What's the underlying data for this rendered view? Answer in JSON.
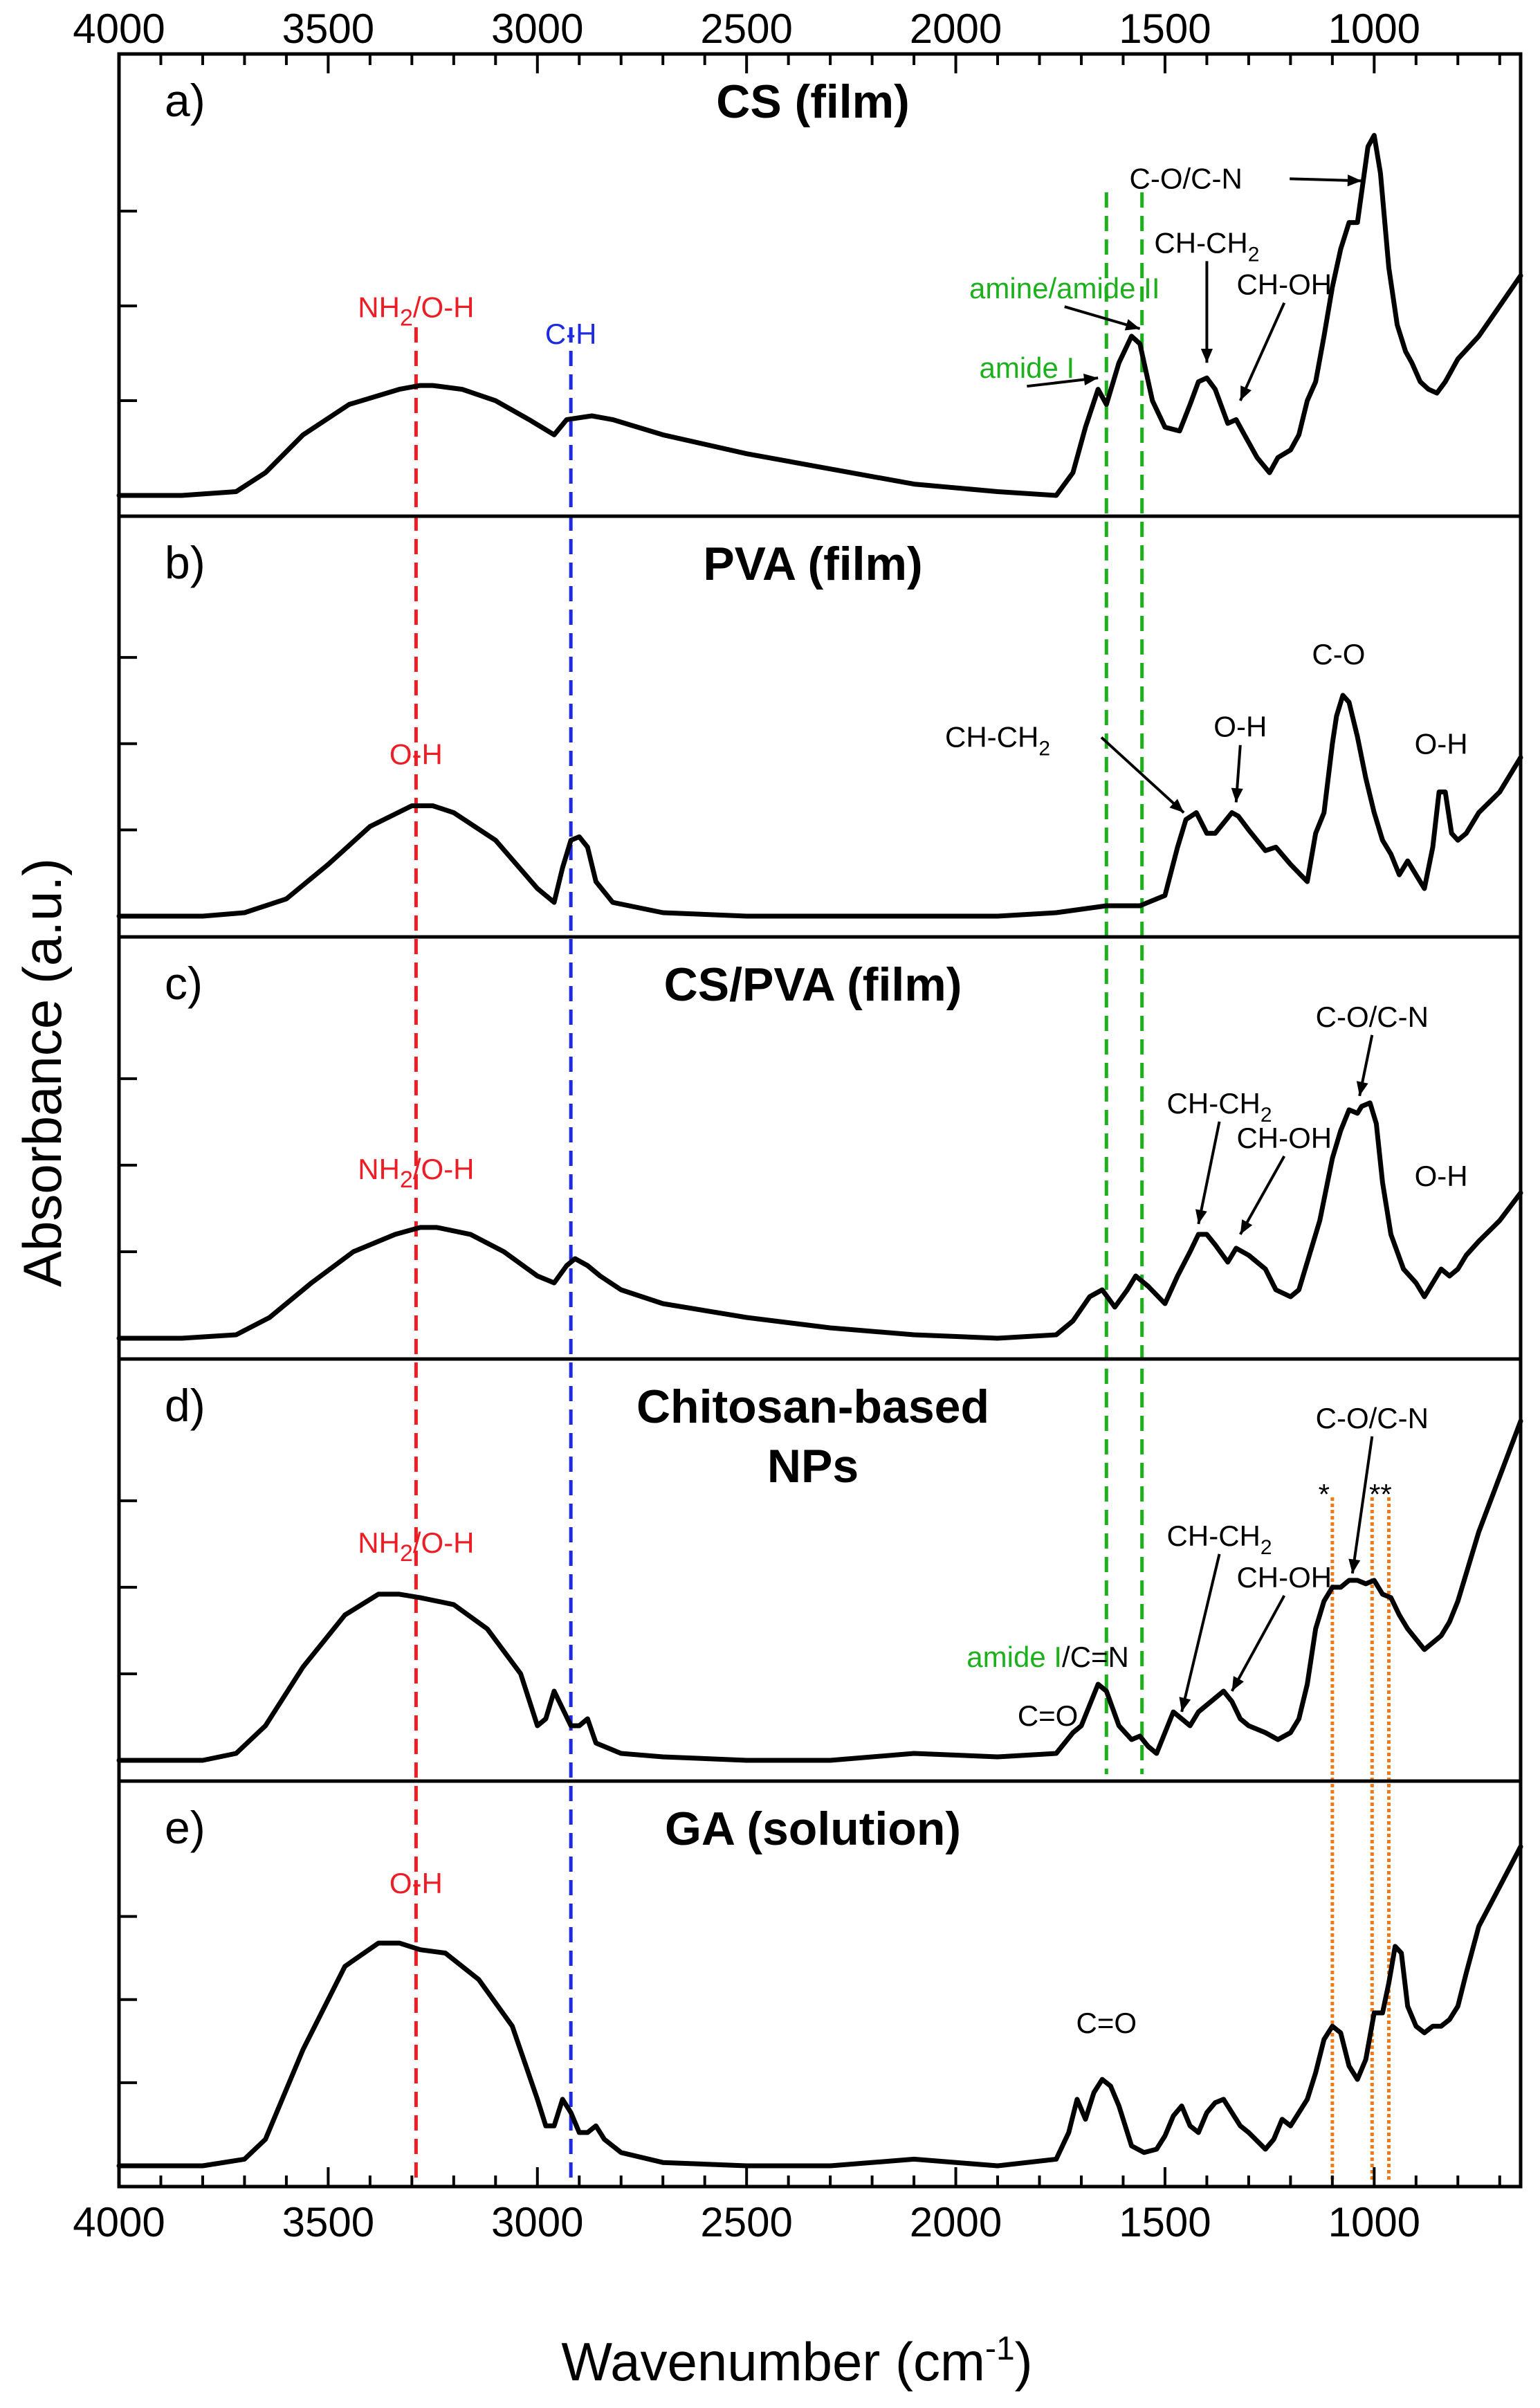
{
  "chart_data": {
    "type": "line",
    "xlabel": "Wavenumber (cm",
    "xlabel_sup": "-1",
    "xlabel_end": ")",
    "ylabel": "Absorbance (a.u.)",
    "xlim": [
      4000,
      650
    ],
    "x_reversed": true,
    "x_ticks": [
      4000,
      3500,
      3000,
      2500,
      2000,
      1500,
      1000
    ],
    "legend": "none",
    "grid": false,
    "colors": {
      "line": "#000000",
      "red": "#ee1c24",
      "blue": "#1f2be0",
      "green": "#1db01d",
      "orange": "#f07a1a"
    },
    "reference_lines": [
      {
        "x": 3290,
        "color": "red",
        "style": "dashed"
      },
      {
        "x": 2920,
        "color": "blue",
        "style": "dashed"
      },
      {
        "x": 1640,
        "color": "green",
        "style": "dashed",
        "panels": [
          0,
          3
        ]
      },
      {
        "x": 1555,
        "color": "green",
        "style": "dashed",
        "panels": [
          0,
          3
        ]
      },
      {
        "x": 1100,
        "color": "orange",
        "style": "dotted",
        "panels": [
          3,
          4
        ]
      },
      {
        "x": 1005,
        "color": "orange",
        "style": "dotted",
        "panels": [
          3,
          4
        ]
      },
      {
        "x": 965,
        "color": "orange",
        "style": "dotted",
        "panels": [
          3,
          4
        ]
      }
    ],
    "panels": [
      {
        "letter": "a)",
        "title": "CS (film)",
        "x": [
          4000,
          3850,
          3720,
          3650,
          3560,
          3450,
          3330,
          3280,
          3250,
          3180,
          3100,
          3020,
          2960,
          2930,
          2870,
          2820,
          2700,
          2500,
          2300,
          2100,
          1900,
          1760,
          1720,
          1690,
          1660,
          1640,
          1610,
          1580,
          1560,
          1530,
          1500,
          1465,
          1440,
          1420,
          1400,
          1380,
          1350,
          1330,
          1310,
          1280,
          1250,
          1230,
          1200,
          1180,
          1160,
          1140,
          1120,
          1100,
          1080,
          1060,
          1040,
          1030,
          1015,
          1000,
          985,
          965,
          945,
          925,
          910,
          890,
          870,
          850,
          830,
          800,
          750,
          700,
          650
        ],
        "y": [
          0.0,
          0.0,
          0.01,
          0.06,
          0.16,
          0.24,
          0.28,
          0.29,
          0.29,
          0.28,
          0.25,
          0.2,
          0.16,
          0.2,
          0.21,
          0.2,
          0.16,
          0.11,
          0.07,
          0.03,
          0.01,
          0.0,
          0.06,
          0.18,
          0.28,
          0.24,
          0.35,
          0.42,
          0.4,
          0.25,
          0.18,
          0.17,
          0.24,
          0.3,
          0.31,
          0.28,
          0.19,
          0.2,
          0.16,
          0.1,
          0.06,
          0.1,
          0.12,
          0.16,
          0.25,
          0.3,
          0.42,
          0.55,
          0.65,
          0.72,
          0.72,
          0.8,
          0.92,
          0.95,
          0.85,
          0.6,
          0.45,
          0.38,
          0.35,
          0.3,
          0.28,
          0.27,
          0.3,
          0.36,
          0.42,
          0.5,
          0.58
        ],
        "annotations": [
          {
            "text": "NH",
            "sub": "2",
            "rest": "/O-H",
            "color": "red",
            "x": 3290,
            "y": 0.47
          },
          {
            "text": "C-H",
            "color": "blue",
            "x": 2920,
            "y": 0.4
          },
          {
            "text": "amide I",
            "color": "green",
            "x": 1830,
            "y": 0.31,
            "arrow_to": [
              1660,
              0.31
            ]
          },
          {
            "text": "amine/amide II",
            "color": "green",
            "x": 1740,
            "y": 0.52,
            "arrow_to": [
              1560,
              0.44
            ]
          },
          {
            "text": "CH-CH",
            "sub": "2",
            "color": "black",
            "x": 1400,
            "y": 0.64,
            "arrow_to": [
              1400,
              0.35
            ]
          },
          {
            "text": "CH-OH",
            "color": "black",
            "x": 1215,
            "y": 0.53,
            "arrow_to": [
              1320,
              0.25
            ]
          },
          {
            "text": "C-O/C-N",
            "color": "black",
            "x": 1450,
            "y": 0.81,
            "arrow_to": [
              1030,
              0.83
            ]
          }
        ]
      },
      {
        "letter": "b)",
        "title": "PVA (film)",
        "x": [
          4000,
          3800,
          3700,
          3600,
          3500,
          3400,
          3300,
          3250,
          3200,
          3100,
          3000,
          2960,
          2940,
          2920,
          2900,
          2880,
          2860,
          2820,
          2700,
          2500,
          2300,
          2100,
          1900,
          1760,
          1700,
          1640,
          1560,
          1500,
          1470,
          1450,
          1425,
          1400,
          1380,
          1340,
          1325,
          1300,
          1260,
          1235,
          1200,
          1160,
          1140,
          1120,
          1100,
          1090,
          1075,
          1060,
          1040,
          1020,
          1000,
          980,
          960,
          940,
          920,
          900,
          880,
          860,
          845,
          830,
          815,
          800,
          780,
          750,
          700,
          650
        ],
        "y": [
          0.0,
          0.0,
          0.01,
          0.05,
          0.15,
          0.26,
          0.32,
          0.32,
          0.3,
          0.22,
          0.08,
          0.04,
          0.14,
          0.22,
          0.23,
          0.2,
          0.1,
          0.04,
          0.01,
          0.0,
          0.0,
          0.0,
          0.0,
          0.01,
          0.02,
          0.03,
          0.03,
          0.06,
          0.2,
          0.28,
          0.3,
          0.24,
          0.24,
          0.3,
          0.29,
          0.25,
          0.19,
          0.2,
          0.15,
          0.1,
          0.24,
          0.3,
          0.5,
          0.58,
          0.64,
          0.62,
          0.52,
          0.4,
          0.3,
          0.22,
          0.18,
          0.12,
          0.16,
          0.12,
          0.08,
          0.2,
          0.36,
          0.36,
          0.24,
          0.22,
          0.24,
          0.3,
          0.36,
          0.46
        ],
        "annotations": [
          {
            "text": "O-H",
            "color": "red",
            "x": 3290,
            "y": 0.44
          },
          {
            "text": "CH-CH",
            "sub": "2",
            "color": "black",
            "x": 1900,
            "y": 0.49,
            "arrow_to": [
              1455,
              0.3
            ]
          },
          {
            "text": "O-H",
            "color": "black",
            "x": 1320,
            "y": 0.52,
            "arrow_to": [
              1330,
              0.33
            ]
          },
          {
            "text": "C-O",
            "color": "black",
            "x": 1085,
            "y": 0.73
          },
          {
            "text": "O-H",
            "color": "black",
            "x": 840,
            "y": 0.47
          }
        ]
      },
      {
        "letter": "c)",
        "title": "CS/PVA (film)",
        "x": [
          4000,
          3850,
          3720,
          3640,
          3540,
          3440,
          3340,
          3280,
          3240,
          3160,
          3080,
          3000,
          2960,
          2930,
          2910,
          2880,
          2850,
          2800,
          2700,
          2500,
          2300,
          2100,
          1900,
          1760,
          1720,
          1680,
          1650,
          1620,
          1590,
          1570,
          1540,
          1500,
          1470,
          1440,
          1420,
          1400,
          1380,
          1350,
          1330,
          1300,
          1260,
          1235,
          1200,
          1180,
          1160,
          1130,
          1100,
          1080,
          1060,
          1040,
          1030,
          1010,
          995,
          980,
          960,
          930,
          900,
          880,
          860,
          840,
          820,
          800,
          780,
          750,
          700,
          650
        ],
        "y": [
          0.0,
          0.0,
          0.01,
          0.06,
          0.16,
          0.25,
          0.3,
          0.32,
          0.32,
          0.3,
          0.25,
          0.18,
          0.16,
          0.21,
          0.23,
          0.21,
          0.18,
          0.14,
          0.1,
          0.06,
          0.03,
          0.01,
          0.0,
          0.01,
          0.05,
          0.12,
          0.14,
          0.09,
          0.14,
          0.18,
          0.15,
          0.1,
          0.18,
          0.25,
          0.3,
          0.3,
          0.27,
          0.22,
          0.26,
          0.24,
          0.2,
          0.14,
          0.12,
          0.14,
          0.22,
          0.34,
          0.52,
          0.6,
          0.66,
          0.65,
          0.67,
          0.68,
          0.62,
          0.45,
          0.3,
          0.2,
          0.16,
          0.12,
          0.16,
          0.2,
          0.18,
          0.2,
          0.24,
          0.28,
          0.34,
          0.42
        ],
        "annotations": [
          {
            "text": "NH",
            "sub": "2",
            "rest": "/O-H",
            "color": "red",
            "x": 3290,
            "y": 0.46
          },
          {
            "text": "CH-CH",
            "sub": "2",
            "color": "black",
            "x": 1370,
            "y": 0.65,
            "arrow_to": [
              1420,
              0.33
            ]
          },
          {
            "text": "CH-OH",
            "color": "black",
            "x": 1215,
            "y": 0.55,
            "arrow_to": [
              1320,
              0.3
            ]
          },
          {
            "text": "C-O/C-N",
            "color": "black",
            "x": 1005,
            "y": 0.9,
            "arrow_to": [
              1035,
              0.7
            ]
          },
          {
            "text": "O-H",
            "color": "black",
            "x": 840,
            "y": 0.44
          }
        ]
      },
      {
        "letter": "d)",
        "title": "Chitosan-based",
        "title2": "NPs",
        "x": [
          4000,
          3900,
          3800,
          3720,
          3650,
          3560,
          3460,
          3380,
          3330,
          3280,
          3200,
          3120,
          3040,
          3000,
          2980,
          2960,
          2940,
          2920,
          2900,
          2880,
          2860,
          2840,
          2800,
          2700,
          2500,
          2300,
          2100,
          1900,
          1760,
          1720,
          1700,
          1680,
          1660,
          1640,
          1610,
          1580,
          1560,
          1540,
          1520,
          1500,
          1480,
          1460,
          1440,
          1420,
          1400,
          1380,
          1360,
          1340,
          1320,
          1300,
          1260,
          1230,
          1200,
          1180,
          1160,
          1140,
          1120,
          1100,
          1080,
          1060,
          1040,
          1020,
          1000,
          980,
          960,
          940,
          920,
          900,
          880,
          860,
          840,
          820,
          800,
          780,
          750,
          700,
          650
        ],
        "y": [
          0.0,
          0.0,
          0.0,
          0.02,
          0.1,
          0.27,
          0.42,
          0.48,
          0.48,
          0.47,
          0.45,
          0.38,
          0.25,
          0.1,
          0.12,
          0.2,
          0.15,
          0.1,
          0.1,
          0.12,
          0.05,
          0.04,
          0.02,
          0.01,
          0.0,
          0.0,
          0.02,
          0.01,
          0.02,
          0.08,
          0.1,
          0.16,
          0.22,
          0.2,
          0.1,
          0.06,
          0.07,
          0.04,
          0.02,
          0.08,
          0.14,
          0.12,
          0.1,
          0.14,
          0.16,
          0.18,
          0.2,
          0.17,
          0.12,
          0.1,
          0.08,
          0.06,
          0.08,
          0.12,
          0.22,
          0.38,
          0.46,
          0.5,
          0.5,
          0.52,
          0.52,
          0.51,
          0.52,
          0.48,
          0.47,
          0.42,
          0.38,
          0.35,
          0.32,
          0.34,
          0.36,
          0.4,
          0.46,
          0.54,
          0.66,
          0.82,
          0.98
        ],
        "annotations": [
          {
            "text": "NH",
            "sub": "2",
            "rest": "/O-H",
            "color": "red",
            "x": 3290,
            "y": 0.6
          },
          {
            "text": "amide I",
            "color": "green",
            "rest2": "/C=N",
            "x": 1780,
            "y": 0.27
          },
          {
            "text": "C=O",
            "color": "black",
            "x": 1780,
            "y": 0.1
          },
          {
            "text": "CH-CH",
            "sub": "2",
            "color": "black",
            "x": 1370,
            "y": 0.62,
            "arrow_to": [
              1460,
              0.14
            ]
          },
          {
            "text": "CH-OH",
            "color": "black",
            "x": 1215,
            "y": 0.5,
            "arrow_to": [
              1340,
              0.2
            ]
          },
          {
            "text": "C-O/C-N",
            "color": "black",
            "x": 1005,
            "y": 0.96,
            "arrow_to": [
              1052,
              0.54
            ]
          },
          {
            "text": "*",
            "color": "black",
            "x": 1120,
            "y": 0.74
          },
          {
            "text": "**",
            "color": "black",
            "x": 985,
            "y": 0.74
          }
        ]
      },
      {
        "letter": "e)",
        "title": "GA (solution)",
        "x": [
          4000,
          3900,
          3800,
          3700,
          3650,
          3560,
          3460,
          3380,
          3330,
          3280,
          3220,
          3140,
          3060,
          3000,
          2980,
          2960,
          2940,
          2920,
          2900,
          2880,
          2860,
          2840,
          2800,
          2700,
          2500,
          2300,
          2100,
          1900,
          1760,
          1730,
          1710,
          1690,
          1670,
          1650,
          1630,
          1610,
          1580,
          1550,
          1520,
          1500,
          1480,
          1460,
          1440,
          1420,
          1400,
          1380,
          1360,
          1340,
          1320,
          1300,
          1260,
          1240,
          1220,
          1200,
          1180,
          1160,
          1140,
          1120,
          1100,
          1080,
          1060,
          1040,
          1020,
          1000,
          980,
          965,
          950,
          935,
          920,
          900,
          880,
          860,
          840,
          820,
          800,
          780,
          750,
          700,
          650
        ],
        "y": [
          0.0,
          0.0,
          0.0,
          0.02,
          0.08,
          0.35,
          0.6,
          0.67,
          0.67,
          0.65,
          0.64,
          0.56,
          0.42,
          0.2,
          0.12,
          0.12,
          0.2,
          0.16,
          0.1,
          0.1,
          0.12,
          0.08,
          0.04,
          0.01,
          0.0,
          0.0,
          0.02,
          0.0,
          0.02,
          0.1,
          0.2,
          0.14,
          0.22,
          0.26,
          0.24,
          0.18,
          0.06,
          0.04,
          0.05,
          0.09,
          0.15,
          0.18,
          0.12,
          0.1,
          0.16,
          0.19,
          0.2,
          0.16,
          0.12,
          0.1,
          0.05,
          0.08,
          0.14,
          0.12,
          0.16,
          0.2,
          0.28,
          0.38,
          0.42,
          0.4,
          0.3,
          0.26,
          0.32,
          0.46,
          0.46,
          0.55,
          0.66,
          0.64,
          0.48,
          0.42,
          0.4,
          0.42,
          0.42,
          0.44,
          0.48,
          0.58,
          0.72,
          0.84,
          0.96
        ],
        "annotations": [
          {
            "text": "O-H",
            "color": "red",
            "x": 3290,
            "y": 0.82
          },
          {
            "text": "C=O",
            "color": "black",
            "x": 1640,
            "y": 0.4
          }
        ]
      }
    ]
  }
}
